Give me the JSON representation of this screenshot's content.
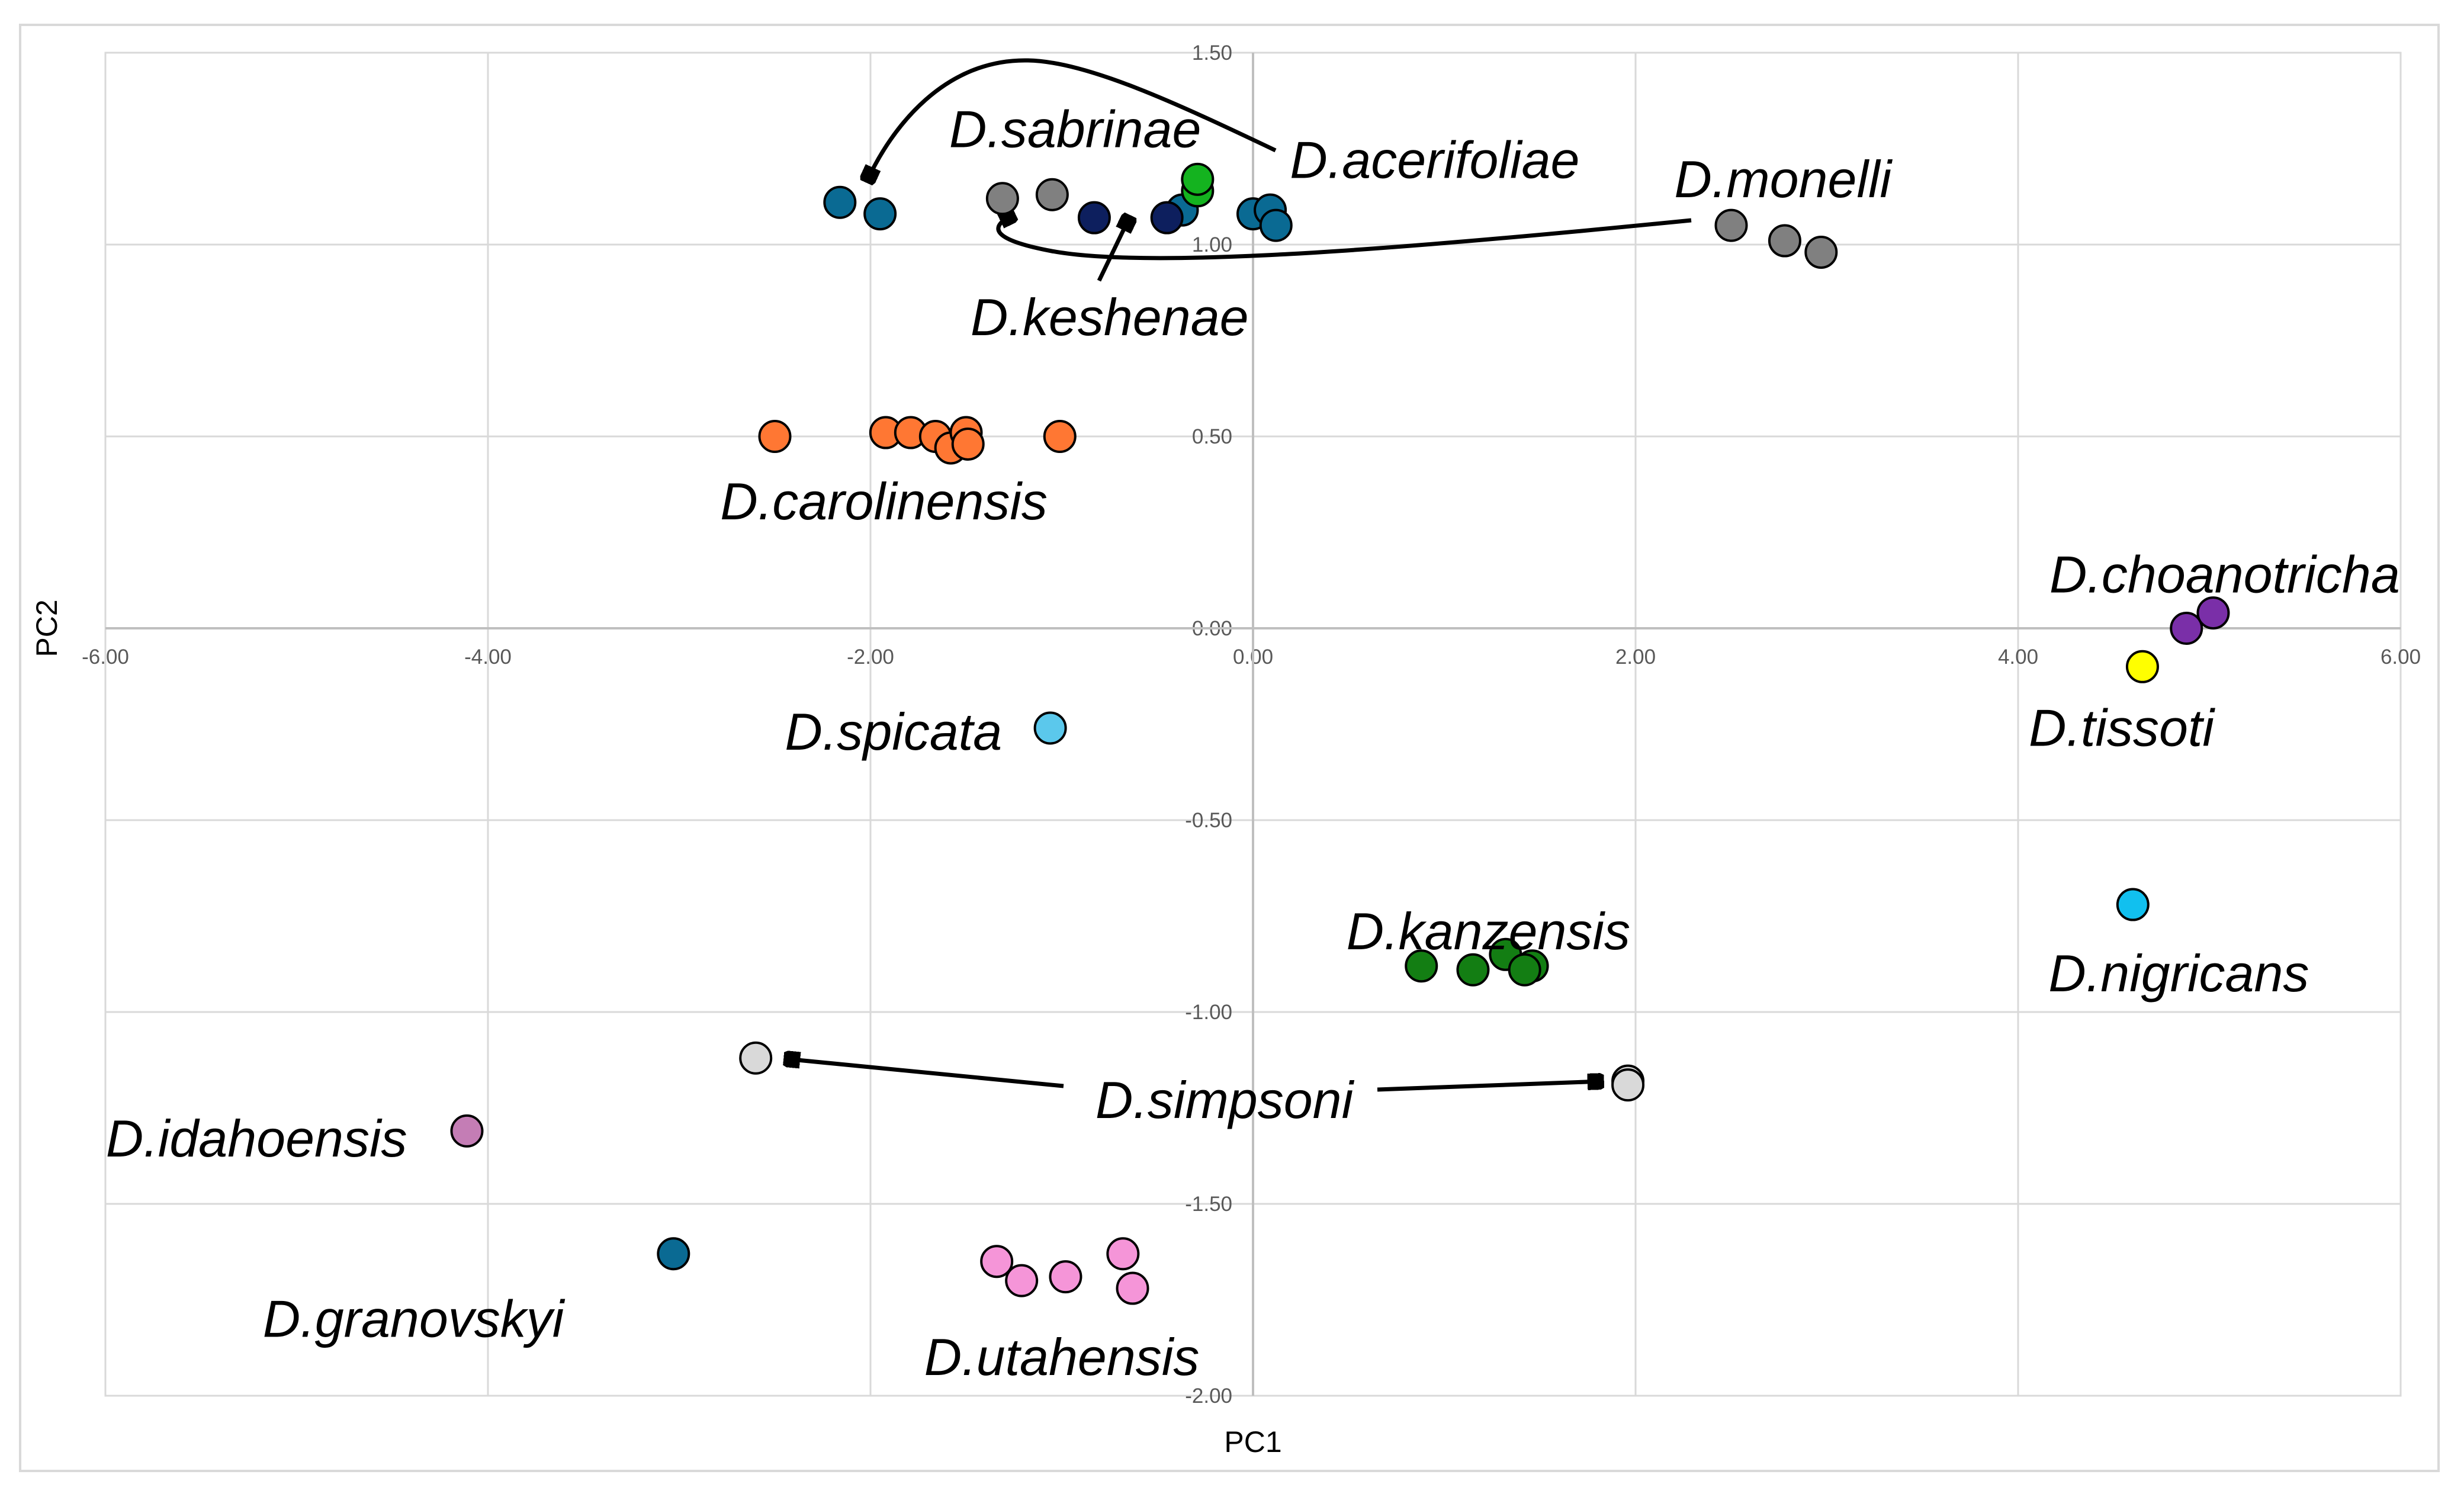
{
  "chart_data": {
    "type": "scatter",
    "title": "",
    "xlabel": "PC1",
    "ylabel": "PC2",
    "xlim": [
      -6,
      6
    ],
    "ylim": [
      -2,
      1.5
    ],
    "xticks": [
      "-6.00",
      "-4.00",
      "-2.00",
      "0.00",
      "2.00",
      "4.00",
      "6.00"
    ],
    "yticks": [
      "1.50",
      "1.00",
      "0.50",
      "0.00",
      "-0.50",
      "-1.00",
      "-1.50",
      "-2.00"
    ],
    "grid": true,
    "series": [
      {
        "name": "D.sabrinae",
        "color": "#0a6a93",
        "points": [
          [
            -2.16,
            1.11
          ],
          [
            -1.95,
            1.08
          ],
          [
            -0.37,
            1.09
          ],
          [
            0,
            1.08
          ],
          [
            0.09,
            1.09
          ],
          [
            0.12,
            1.05
          ]
        ]
      },
      {
        "name": "D.acerifoliae",
        "color": "#14b31f",
        "points": [
          [
            -0.29,
            1.14
          ],
          [
            -0.29,
            1.17
          ]
        ]
      },
      {
        "name": "D.keshenae",
        "color": "#0d1f5e",
        "points": [
          [
            -0.83,
            1.07
          ],
          [
            -0.45,
            1.07
          ]
        ]
      },
      {
        "name": "D.monelli",
        "color": "#808080",
        "points": [
          [
            -1.31,
            1.12
          ],
          [
            -1.05,
            1.13
          ],
          [
            2.5,
            1.05
          ],
          [
            2.78,
            1.01
          ],
          [
            2.97,
            0.98
          ]
        ]
      },
      {
        "name": "D.carolinensis",
        "color": "#ff7733",
        "points": [
          [
            -2.5,
            0.5
          ],
          [
            -1.92,
            0.51
          ],
          [
            -1.79,
            0.51
          ],
          [
            -1.66,
            0.5
          ],
          [
            -1.58,
            0.47
          ],
          [
            -1.5,
            0.51
          ],
          [
            -1.49,
            0.48
          ],
          [
            -1.01,
            0.5
          ]
        ]
      },
      {
        "name": "D.choanotricha",
        "color": "#7a2fa8",
        "points": [
          [
            4.88,
            0
          ],
          [
            5.02,
            0.04
          ]
        ]
      },
      {
        "name": "D.tissoti",
        "color": "#ffff00",
        "points": [
          [
            4.65,
            -0.1
          ]
        ]
      },
      {
        "name": "D.spicata",
        "color": "#5bc8ec",
        "points": [
          [
            -1.06,
            -0.26
          ]
        ]
      },
      {
        "name": "D.nigricans",
        "color": "#11c0ef",
        "points": [
          [
            4.6,
            -0.72
          ]
        ]
      },
      {
        "name": "D.kanzensis",
        "color": "#137e13",
        "points": [
          [
            0.88,
            -0.88
          ],
          [
            1.15,
            -0.89
          ],
          [
            1.32,
            -0.85
          ],
          [
            1.46,
            -0.88
          ],
          [
            1.42,
            -0.89
          ]
        ]
      },
      {
        "name": "D.simpsoni",
        "color": "#d9d9d9",
        "points": [
          [
            -2.6,
            -1.12
          ],
          [
            1.96,
            -1.18
          ],
          [
            1.96,
            -1.19
          ]
        ]
      },
      {
        "name": "D.idahoensis",
        "color": "#c47db5",
        "points": [
          [
            -4.11,
            -1.31
          ]
        ]
      },
      {
        "name": "D.granovskyi",
        "color": "#0a6a93",
        "points": [
          [
            -3.03,
            -1.63
          ]
        ]
      },
      {
        "name": "D.utahensis",
        "color": "#f595d8",
        "points": [
          [
            -1.34,
            -1.65
          ],
          [
            -1.21,
            -1.7
          ],
          [
            -0.98,
            -1.69
          ],
          [
            -0.68,
            -1.63
          ],
          [
            -0.63,
            -1.72
          ]
        ]
      }
    ],
    "annotations": [
      {
        "text": "D.sabrinae",
        "x": -0.93,
        "y": 1.3
      },
      {
        "text": "D.acerifoliae",
        "x": 0.95,
        "y": 1.22
      },
      {
        "text": "D.monelli",
        "x": 2.77,
        "y": 1.17
      },
      {
        "text": "D.keshenae",
        "x": -0.75,
        "y": 0.81
      },
      {
        "text": "D.carolinensis",
        "x": -1.93,
        "y": 0.33
      },
      {
        "text": "D.choanotricha",
        "x": 5.08,
        "y": 0.14
      },
      {
        "text": "D.tissoti",
        "x": 4.54,
        "y": -0.26
      },
      {
        "text": "D.spicata",
        "x": -1.88,
        "y": -0.27
      },
      {
        "text": "D.kanzensis",
        "x": 1.23,
        "y": -0.79
      },
      {
        "text": "D.nigricans",
        "x": 4.84,
        "y": -0.9
      },
      {
        "text": "D.simpsoni",
        "x": -0.15,
        "y": -1.23
      },
      {
        "text": "D.idahoensis",
        "x": -5.21,
        "y": -1.33
      },
      {
        "text": "D.granovskyi",
        "x": -4.39,
        "y": -1.8
      },
      {
        "text": "D.utahensis",
        "x": -1.0,
        "y": -1.9
      }
    ]
  }
}
